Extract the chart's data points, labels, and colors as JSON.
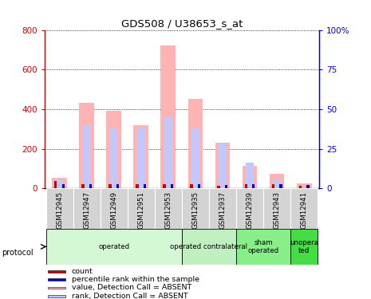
{
  "title": "GDS508 / U38653_s_at",
  "samples": [
    "GSM12945",
    "GSM12947",
    "GSM12949",
    "GSM12951",
    "GSM12953",
    "GSM12935",
    "GSM12937",
    "GSM12939",
    "GSM12943",
    "GSM12941"
  ],
  "value_absent": [
    55,
    430,
    390,
    320,
    720,
    450,
    230,
    115,
    75,
    25
  ],
  "rank_absent_pct": [
    5,
    40,
    38,
    38,
    45,
    38,
    29,
    16,
    5,
    0
  ],
  "count_left": [
    8,
    5,
    5,
    5,
    5,
    5,
    3,
    5,
    5,
    3
  ],
  "percentile_left": [
    5,
    5,
    5,
    5,
    5,
    5,
    4,
    5,
    5,
    4
  ],
  "ylim_left": [
    0,
    800
  ],
  "ylim_right": [
    0,
    100
  ],
  "yticks_left": [
    0,
    200,
    400,
    600,
    800
  ],
  "yticks_right": [
    0,
    25,
    50,
    75,
    100
  ],
  "ytick_labels_left": [
    "0",
    "200",
    "400",
    "600",
    "800"
  ],
  "ytick_labels_right": [
    "0",
    "25",
    "50",
    "75",
    "100%"
  ],
  "color_value_absent": "#ffb3b3",
  "color_rank_absent": "#c0c8ff",
  "color_count": "#cc0000",
  "color_percentile": "#0000cc",
  "protocol_groups": [
    {
      "label": "operated",
      "start": 0,
      "end": 5,
      "color": "#d4f7d4"
    },
    {
      "label": "operated contralateral",
      "start": 5,
      "end": 7,
      "color": "#c0f0c0"
    },
    {
      "label": "sham\noperated",
      "start": 7,
      "end": 9,
      "color": "#88ee88"
    },
    {
      "label": "unopera\nted",
      "start": 9,
      "end": 10,
      "color": "#44dd44"
    }
  ],
  "legend_items": [
    {
      "label": "count",
      "color": "#cc0000"
    },
    {
      "label": "percentile rank within the sample",
      "color": "#0000cc"
    },
    {
      "label": "value, Detection Call = ABSENT",
      "color": "#ffb3b3"
    },
    {
      "label": "rank, Detection Call = ABSENT",
      "color": "#c0c8ff"
    }
  ],
  "axis_left_color": "#cc0000",
  "axis_right_color": "#0000cc",
  "tick_area_color": "#d3d3d3"
}
